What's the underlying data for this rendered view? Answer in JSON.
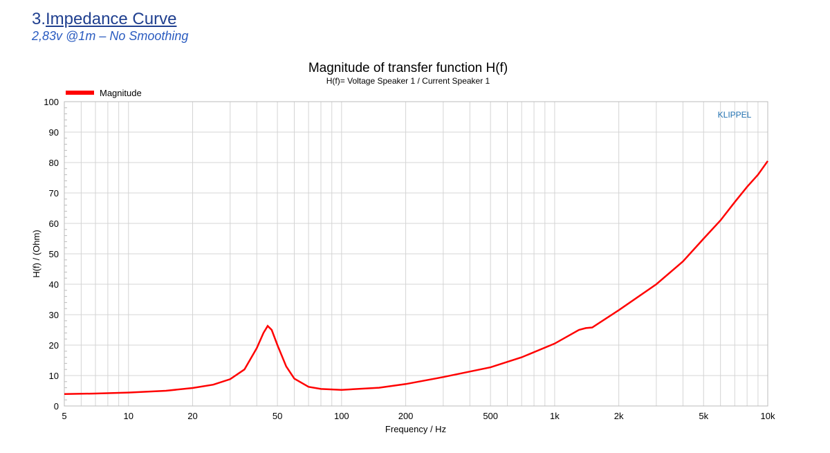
{
  "header": {
    "number": "3.",
    "title": "Impedance Curve",
    "subtitle": "2,83v @1m – No Smoothing"
  },
  "chart_data": {
    "type": "line",
    "title": "Magnitude of transfer function H(f)",
    "subtitle": "H(f)= Voltage Speaker 1 / Current Speaker 1",
    "xlabel": "Frequency / Hz",
    "ylabel": "H(f) / (Ohm)",
    "xscale": "log",
    "xlim": [
      5,
      10000
    ],
    "ylim": [
      0,
      100
    ],
    "xticks": [
      5,
      10,
      20,
      50,
      100,
      200,
      500,
      1000,
      2000,
      5000,
      10000
    ],
    "xticklabels": [
      "5",
      "10",
      "20",
      "50",
      "100",
      "200",
      "500",
      "1k",
      "2k",
      "5k",
      "10k"
    ],
    "yticks": [
      0,
      10,
      20,
      30,
      40,
      50,
      60,
      70,
      80,
      90,
      100
    ],
    "grid": true,
    "legend": "top-left",
    "watermark": "KLIPPEL",
    "series": [
      {
        "name": "Magnitude",
        "color": "#ff0000",
        "x": [
          5,
          7,
          10,
          15,
          20,
          25,
          30,
          35,
          40,
          43,
          45,
          47,
          50,
          55,
          60,
          70,
          80,
          100,
          150,
          200,
          300,
          500,
          700,
          1000,
          1300,
          1400,
          1500,
          2000,
          3000,
          4000,
          5000,
          6000,
          7000,
          8000,
          9000,
          10000
        ],
        "y": [
          3.9,
          4.1,
          4.4,
          5.0,
          5.9,
          7.0,
          8.8,
          12,
          19,
          24,
          26.3,
          25,
          20,
          13,
          9,
          6.3,
          5.6,
          5.3,
          6.0,
          7.2,
          9.5,
          12.7,
          16,
          20.5,
          25,
          25.6,
          25.8,
          31.5,
          40,
          47.5,
          55,
          61,
          67,
          72,
          76,
          80.5
        ]
      }
    ]
  }
}
